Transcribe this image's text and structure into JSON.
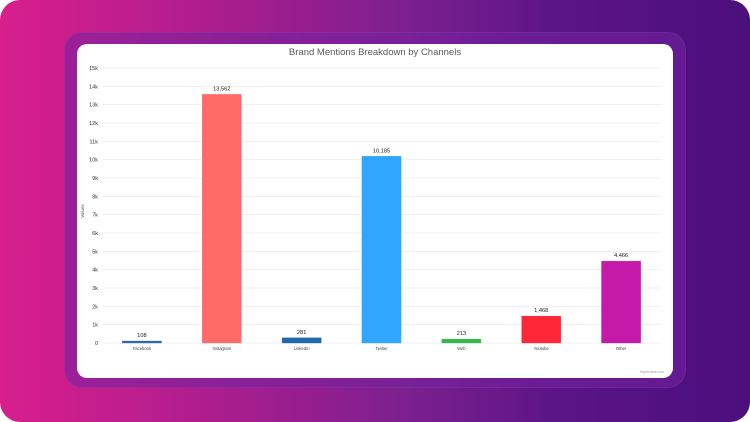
{
  "chart_data": {
    "type": "bar",
    "title": "Brand Mentions Breakdown by Channels",
    "xlabel": "",
    "ylabel": "Values",
    "categories": [
      "Facebook",
      "Instagram",
      "LinkedIn",
      "Twitter",
      "Web",
      "Youtube",
      "Other"
    ],
    "values": [
      108,
      13562,
      281,
      10185,
      213,
      1468,
      4466
    ],
    "value_labels": [
      "108",
      "13,562",
      "281",
      "10,185",
      "213",
      "1,468",
      "4,466"
    ],
    "ylim": [
      0,
      15000
    ],
    "yticks": [
      0,
      1000,
      2000,
      3000,
      4000,
      5000,
      6000,
      7000,
      8000,
      9000,
      10000,
      11000,
      12000,
      13000,
      14000,
      15000
    ],
    "ytick_labels": [
      "0",
      "1k",
      "2k",
      "3k",
      "4k",
      "5k",
      "6k",
      "7k",
      "8k",
      "9k",
      "10k",
      "11k",
      "12k",
      "13k",
      "14k",
      "15k"
    ],
    "grid": true,
    "legend": "none",
    "colors": [
      "#2f69a7",
      "#ff6b66",
      "#1f6aa8",
      "#31a6ff",
      "#35b84a",
      "#ff2638",
      "#c51aa9"
    ],
    "credit": "Highcharts.com"
  }
}
